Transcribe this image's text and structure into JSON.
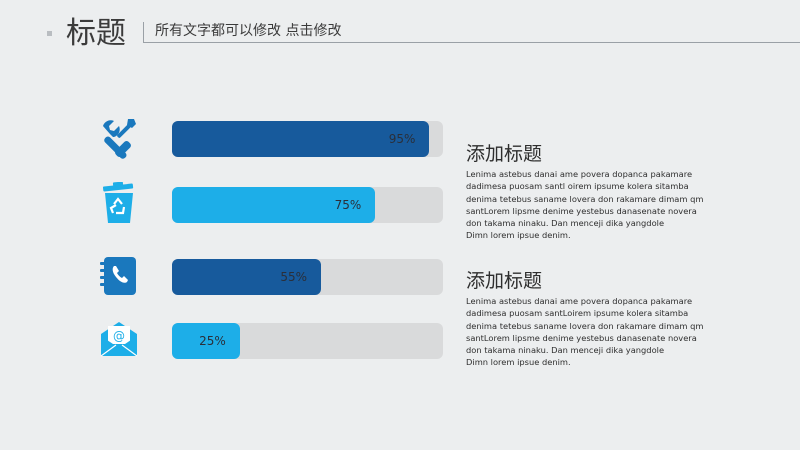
{
  "header": {
    "title": "标题",
    "subtitle": "所有文字都可以修改  点击修改"
  },
  "colors": {
    "dark_bar": "#175a9c",
    "light_bar": "#1daee8",
    "icon": "#1a78bd",
    "track": "#d9dadb"
  },
  "bars": [
    {
      "icon": "tools-icon",
      "percent": 95,
      "label": "95%",
      "style": "dark"
    },
    {
      "icon": "recycle-bin-icon",
      "percent": 75,
      "label": "75%",
      "style": "light"
    },
    {
      "icon": "phone-book-icon",
      "percent": 55,
      "label": "55%",
      "style": "dark"
    },
    {
      "icon": "email-envelope-icon",
      "percent": 25,
      "label": "25%",
      "style": "light"
    }
  ],
  "blocks": [
    {
      "title": "添加标题",
      "lines": [
        "Lenima astebus danai ame povera dopanca pakamare",
        "dadimesa puosam santl oirem ipsume kolera sitamba",
        "denima tetebus saname lovera don rakamare dimam qm",
        "santLorem lipsme denime yestebus danasenate novera",
        "don takama ninaku. Dan menceji dika yangdole",
        "Dimn lorem ipsue denim."
      ]
    },
    {
      "title": "添加标题",
      "lines": [
        "Lenima astebus danai ame povera dopanca pakamare",
        "dadimesa puosam santLoirem ipsume kolera sitamba",
        "denima tetebus saname lovera don rakamare dimam qm",
        "santLorem lipsme denime yestebus danasenate novera",
        "don takama ninaku. Dan menceji dika yangdole",
        "Dimn lorem ipsue denim."
      ]
    }
  ]
}
